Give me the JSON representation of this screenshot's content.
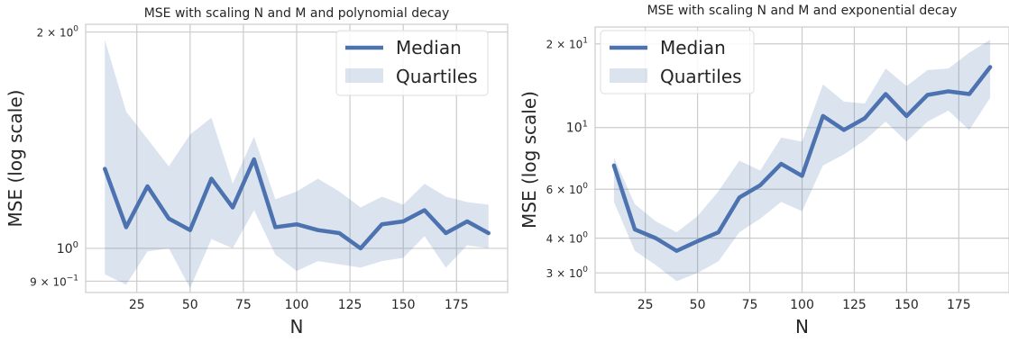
{
  "chart_data": [
    {
      "type": "line",
      "title": "MSE with scaling N and M and polynomial decay",
      "xlabel": "N",
      "ylabel": "MSE (log scale)",
      "yscale": "log",
      "xlim": [
        1,
        199
      ],
      "ylim": [
        0.868,
        2.05
      ],
      "grid": true,
      "legend_position": "top-right",
      "xticks": [
        25,
        50,
        75,
        100,
        125,
        150,
        175
      ],
      "xtick_labels": [
        "25",
        "50",
        "75",
        "100",
        "125",
        "150",
        "175"
      ],
      "yticks": [
        {
          "value": 2.0,
          "mantissa": "2",
          "exponent": "0",
          "major": false
        },
        {
          "value": 1.0,
          "mantissa": "",
          "exponent": "0",
          "major": true
        },
        {
          "value": 0.9,
          "mantissa": "9",
          "exponent": "−1",
          "major": false
        }
      ],
      "x": [
        10,
        20,
        30,
        40,
        50,
        60,
        70,
        80,
        90,
        100,
        110,
        120,
        130,
        140,
        150,
        160,
        170,
        180,
        190
      ],
      "series": [
        {
          "name": "Median",
          "color": "#4c72b0",
          "values": [
            1.29,
            1.07,
            1.22,
            1.1,
            1.06,
            1.25,
            1.14,
            1.33,
            1.07,
            1.08,
            1.06,
            1.05,
            1.0,
            1.08,
            1.09,
            1.13,
            1.05,
            1.09,
            1.05
          ]
        }
      ],
      "band": {
        "name": "Quartiles",
        "color": "#4c72b0",
        "lower": [
          0.92,
          0.89,
          0.99,
          1.0,
          0.88,
          1.03,
          1.0,
          1.13,
          0.98,
          0.93,
          0.96,
          0.95,
          0.94,
          0.96,
          0.97,
          1.04,
          0.94,
          1.01,
          1.0
        ],
        "upper": [
          1.95,
          1.55,
          1.42,
          1.3,
          1.44,
          1.52,
          1.23,
          1.43,
          1.17,
          1.2,
          1.25,
          1.2,
          1.14,
          1.18,
          1.15,
          1.23,
          1.18,
          1.16,
          1.15
        ]
      }
    },
    {
      "type": "line",
      "title": "MSE with scaling N and M and exponential decay",
      "xlabel": "N",
      "ylabel": "MSE (log scale)",
      "yscale": "log",
      "xlim": [
        1,
        199
      ],
      "ylim": [
        2.55,
        23.0
      ],
      "grid": true,
      "legend_position": "top-left",
      "xticks": [
        25,
        50,
        75,
        100,
        125,
        150,
        175
      ],
      "xtick_labels": [
        "25",
        "50",
        "75",
        "100",
        "125",
        "150",
        "175"
      ],
      "yticks": [
        {
          "value": 20.0,
          "mantissa": "2",
          "exponent": "1",
          "major": false
        },
        {
          "value": 10.0,
          "mantissa": "",
          "exponent": "1",
          "major": true
        },
        {
          "value": 6.0,
          "mantissa": "6",
          "exponent": "0",
          "major": false
        },
        {
          "value": 4.0,
          "mantissa": "4",
          "exponent": "0",
          "major": false
        },
        {
          "value": 3.0,
          "mantissa": "3",
          "exponent": "0",
          "major": false
        }
      ],
      "x": [
        10,
        20,
        30,
        40,
        50,
        60,
        70,
        80,
        90,
        100,
        110,
        120,
        130,
        140,
        150,
        160,
        170,
        180,
        190
      ],
      "series": [
        {
          "name": "Median",
          "color": "#4c72b0",
          "values": [
            7.3,
            4.3,
            4.0,
            3.6,
            3.9,
            4.2,
            5.6,
            6.2,
            7.4,
            6.7,
            11.0,
            9.8,
            10.8,
            13.2,
            11.0,
            13.1,
            13.5,
            13.2,
            16.5
          ]
        }
      ],
      "band": {
        "name": "Quartiles",
        "color": "#4c72b0",
        "lower": [
          5.4,
          3.6,
          3.2,
          2.8,
          3.0,
          3.3,
          4.2,
          4.7,
          5.4,
          5.0,
          7.3,
          8.0,
          9.0,
          10.5,
          8.9,
          10.5,
          11.5,
          9.8,
          12.8
        ],
        "upper": [
          7.8,
          5.3,
          4.6,
          4.2,
          4.8,
          5.9,
          7.6,
          7.0,
          9.2,
          8.9,
          14.3,
          12.4,
          12.2,
          16.3,
          14.1,
          16.1,
          16.3,
          18.6,
          20.7
        ]
      }
    }
  ]
}
